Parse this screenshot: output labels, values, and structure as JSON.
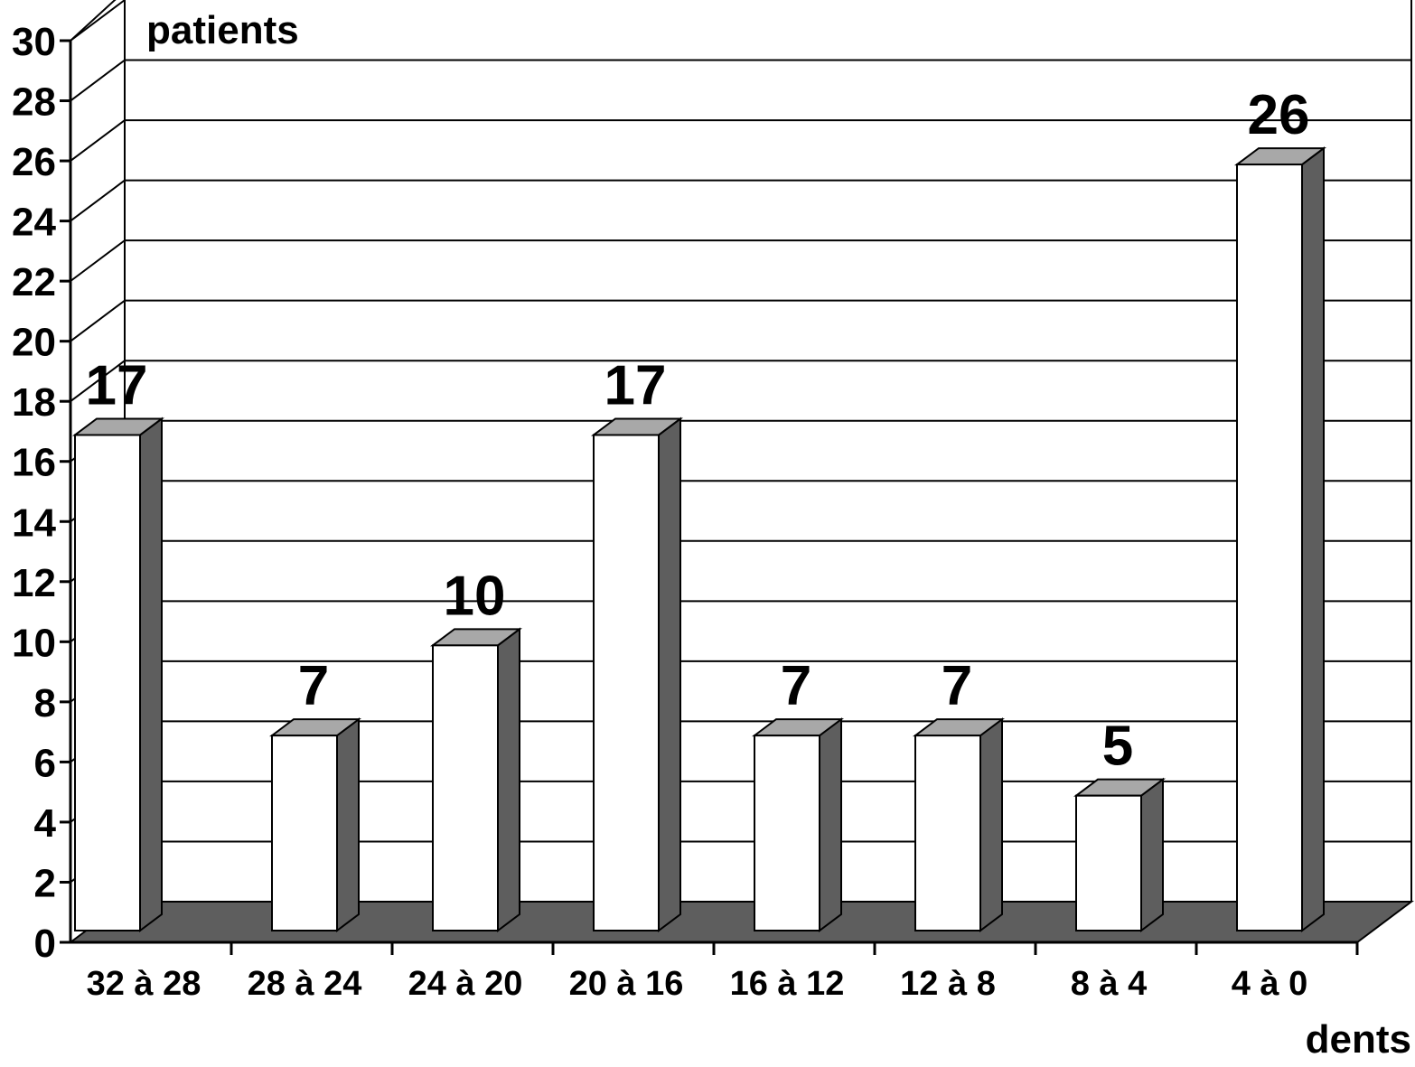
{
  "chart_data": {
    "type": "bar",
    "title": "",
    "ylabel": "patients",
    "xlabel": "dents",
    "categories": [
      "32 à 28",
      "28 à 24",
      "24 à 20",
      "20 à 16",
      "16 à 12",
      "12 à 8",
      "8 à 4",
      "4 à 0"
    ],
    "values": [
      17,
      7,
      10,
      17,
      7,
      7,
      5,
      26
    ],
    "data_labels": [
      "17",
      "7",
      "10",
      "17",
      "7",
      "7",
      "5",
      "26"
    ],
    "ylim": [
      0,
      30
    ],
    "yticks": [
      "0",
      "2",
      "4",
      "6",
      "8",
      "10",
      "12",
      "14",
      "16",
      "18",
      "20",
      "22",
      "24",
      "26",
      "28",
      "30"
    ],
    "grid": true,
    "style": "3d",
    "colors": {
      "bar_front": "#ffffff",
      "bar_top": "#a8a8a8",
      "bar_side": "#5e5e5e",
      "floor": "#5e5e5e",
      "lines": "#000000"
    }
  }
}
